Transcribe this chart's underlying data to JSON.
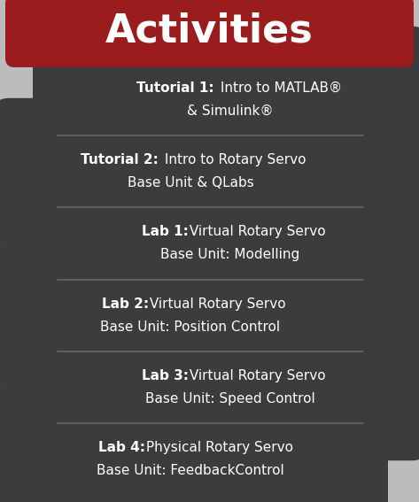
{
  "title": "Activities",
  "title_bg": "#9B1C1C",
  "title_color": "#FFFFFF",
  "bg_color": "#BCBCBC",
  "pill_color": "#3C3C3C",
  "pill_text_color": "#FFFFFF",
  "separator_color": "#686868",
  "fig_w": 4.73,
  "fig_h": 5.67,
  "dpi": 100,
  "items": [
    {
      "bold": "Tutorial 1:",
      "line1": " Intro to MATLAB®",
      "line2": "& Simulink®",
      "snake": "right"
    },
    {
      "bold": "Tutorial 2:",
      "line1": " Intro to Rotary Servo",
      "line2": "Base Unit & QLabs",
      "snake": "left"
    },
    {
      "bold": "Lab 1:",
      "line1": " Virtual Rotary Servo",
      "line2": "Base Unit: Modelling",
      "snake": "right"
    },
    {
      "bold": "Lab 2:",
      "line1": " Virtual Rotary Servo",
      "line2": "Base Unit: Position Control",
      "snake": "left"
    },
    {
      "bold": "Lab 3:",
      "line1": " Virtual Rotary Servo",
      "line2": "Base Unit: Speed Control",
      "snake": "right"
    },
    {
      "bold": "Lab 4:",
      "line1": " Physical Rotary Servo",
      "line2": "Base Unit: FeedbackControl",
      "snake": "left"
    }
  ]
}
